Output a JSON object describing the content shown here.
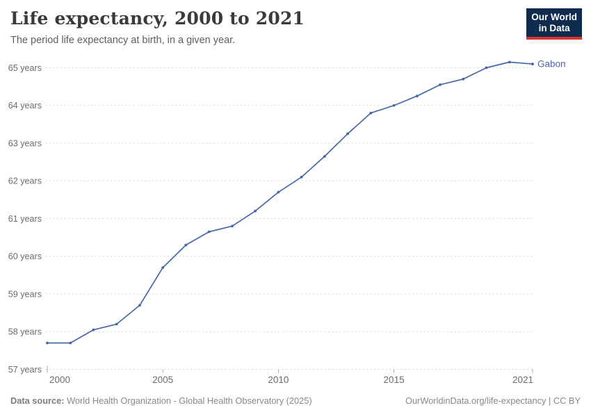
{
  "header": {
    "title": "Life expectancy, 2000 to 2021",
    "subtitle": "The period life expectancy at birth, in a given year."
  },
  "logo": {
    "line1": "Our World",
    "line2": "in Data",
    "bg_color": "#0f2c4e",
    "accent_color": "#d8352e"
  },
  "chart_data": {
    "type": "line",
    "title": "Life expectancy, 2000 to 2021",
    "xlabel": "",
    "ylabel": "",
    "x": [
      2000,
      2001,
      2002,
      2003,
      2004,
      2005,
      2006,
      2007,
      2008,
      2009,
      2010,
      2011,
      2012,
      2013,
      2014,
      2015,
      2016,
      2017,
      2018,
      2019,
      2020,
      2021
    ],
    "series": [
      {
        "name": "Gabon",
        "color": "#4766a7",
        "values": [
          57.7,
          57.7,
          58.05,
          58.2,
          58.7,
          59.7,
          60.3,
          60.65,
          60.8,
          61.2,
          61.7,
          62.1,
          62.65,
          63.25,
          63.8,
          64.0,
          64.25,
          64.55,
          64.7,
          65.0,
          65.15,
          65.1
        ]
      }
    ],
    "xlim": [
      2000,
      2021
    ],
    "ylim": [
      57,
      65
    ],
    "xticks": [
      2000,
      2005,
      2010,
      2015,
      2021
    ],
    "yticks": [
      57,
      58,
      59,
      60,
      61,
      62,
      63,
      64,
      65
    ],
    "ytick_suffix": " years",
    "grid": "horizontal-dashed",
    "legend_position": "end-of-line",
    "colors": {
      "gridline": "#d9d9d9",
      "tick_mark": "#a8a8a8",
      "tick_label": "#6b6b6b"
    }
  },
  "footer": {
    "datasource_label": "Data source:",
    "datasource_text": " World Health Organization - Global Health Observatory (2025)",
    "rights": "OurWorldinData.org/life-expectancy | CC BY"
  }
}
